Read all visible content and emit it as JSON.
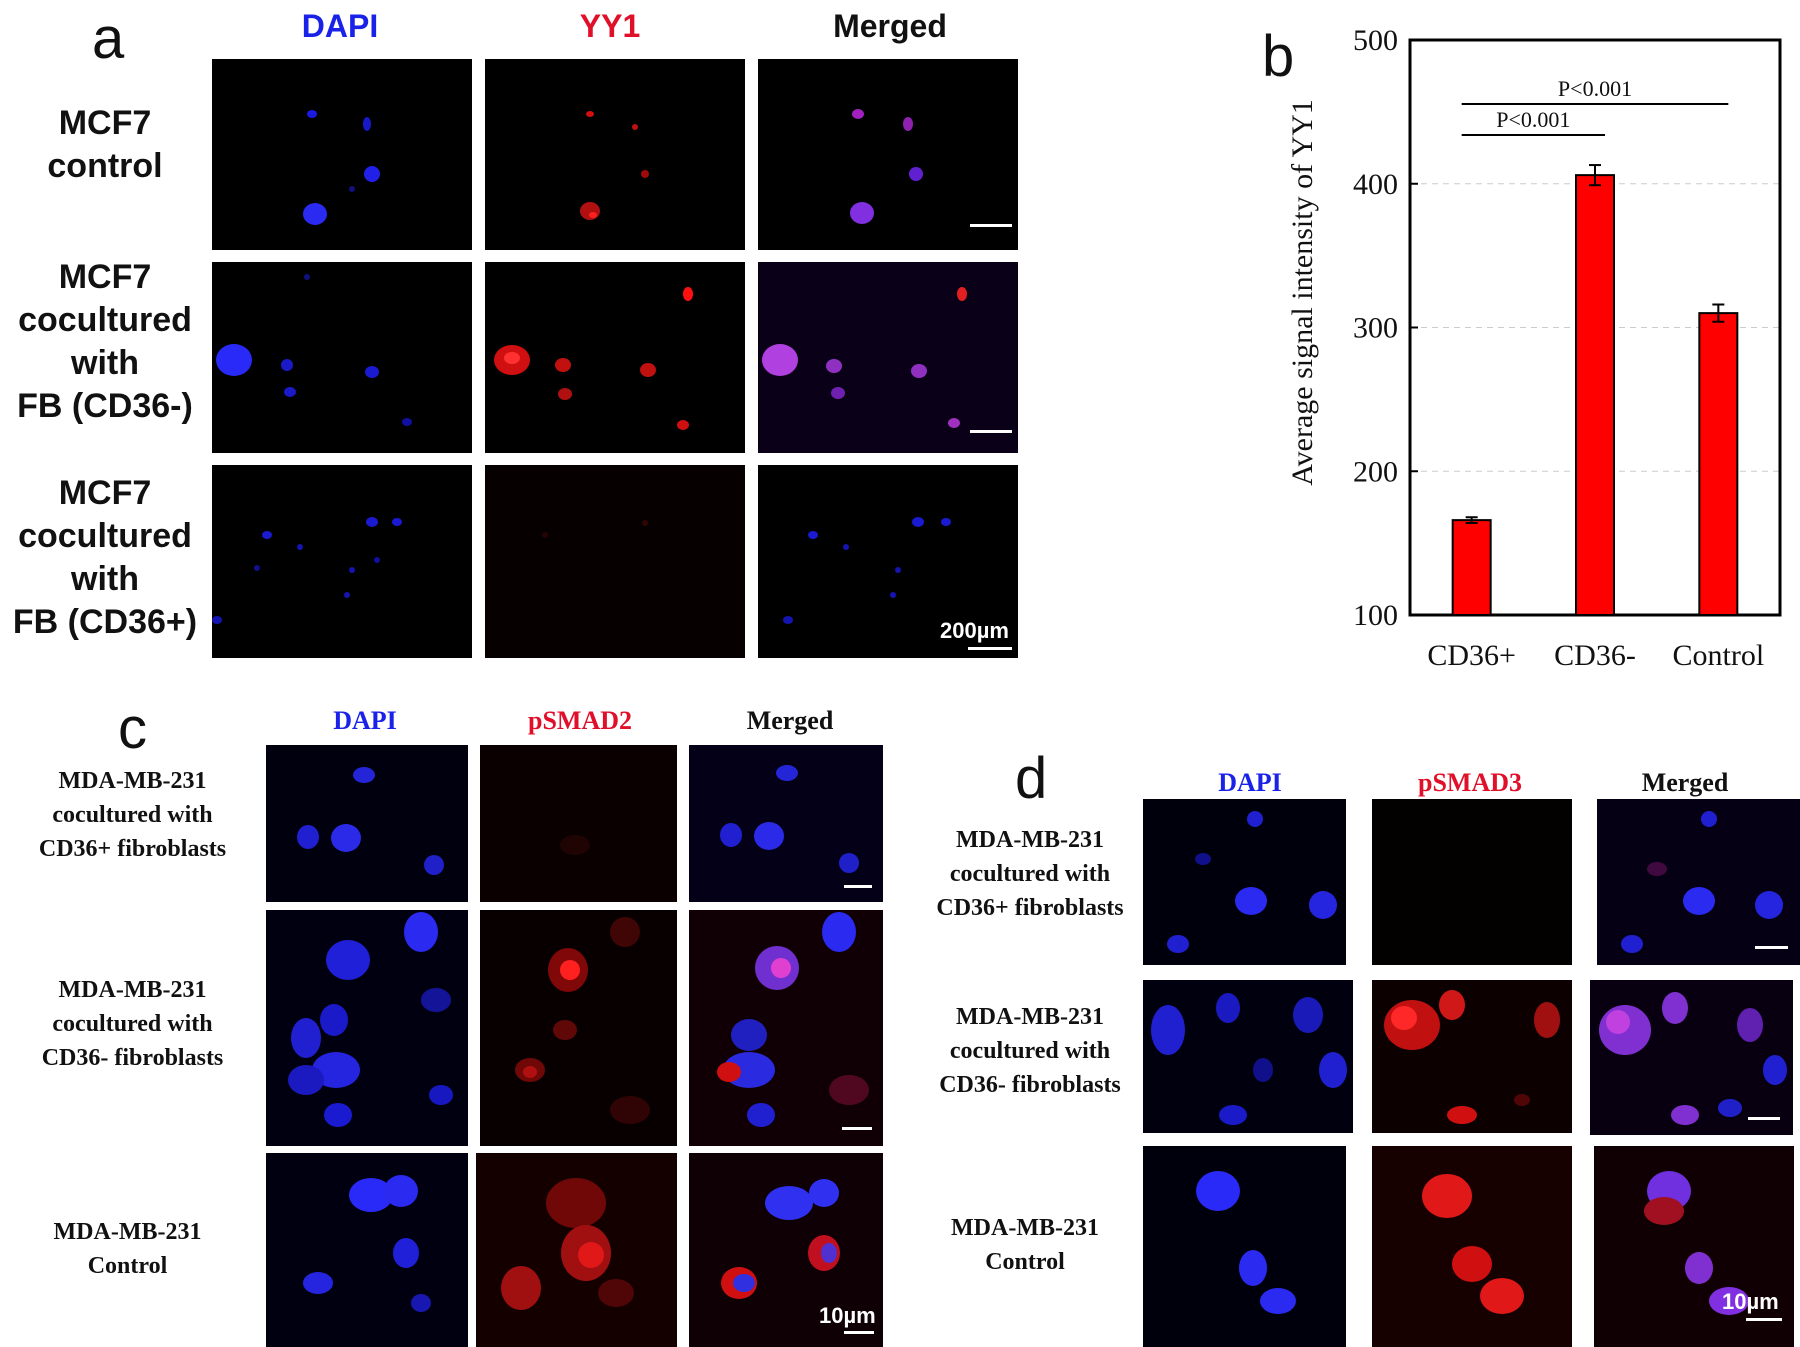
{
  "panel_a": {
    "letter": "a",
    "headers": {
      "dapi": "DAPI",
      "yy1": "YY1",
      "merged": "Merged"
    },
    "rows": [
      {
        "label_lines": [
          "MCF7",
          "control"
        ]
      },
      {
        "label_lines": [
          "MCF7",
          "cocultured",
          "with",
          "FB (CD36-)"
        ]
      },
      {
        "label_lines": [
          "MCF7",
          "cocultured",
          "with",
          "FB (CD36+)"
        ]
      }
    ],
    "scale_label": "200µm"
  },
  "panel_b": {
    "letter": "b",
    "chart_data": {
      "type": "bar",
      "categories": [
        "CD36+",
        "CD36-",
        "Control"
      ],
      "values": [
        166,
        406,
        310
      ],
      "errors": [
        2,
        7,
        6
      ],
      "ylabel": "Average signal intensity of YY1",
      "ylim": [
        100,
        500
      ],
      "yticks": [
        100,
        200,
        300,
        400,
        500
      ],
      "grid": true,
      "bar_color": "#ff0000",
      "significance": [
        {
          "from": "CD36+",
          "to": "CD36-",
          "label": "P<0.001"
        },
        {
          "from": "CD36+",
          "to": "Control",
          "label": "P<0.001"
        }
      ]
    }
  },
  "panel_c": {
    "letter": "c",
    "headers": {
      "dapi": "DAPI",
      "marker": "pSMAD2",
      "merged": "Merged"
    },
    "rows": [
      {
        "label_lines": [
          "MDA-MB-231",
          "cocultured with",
          "CD36+ fibroblasts"
        ]
      },
      {
        "label_lines": [
          "MDA-MB-231",
          "cocultured with",
          "CD36- fibroblasts"
        ]
      },
      {
        "label_lines": [
          "MDA-MB-231",
          "Control"
        ]
      }
    ],
    "scale_label": "10µm"
  },
  "panel_d": {
    "letter": "d",
    "headers": {
      "dapi": "DAPI",
      "marker": "pSMAD3",
      "merged": "Merged"
    },
    "rows": [
      {
        "label_lines": [
          "MDA-MB-231",
          "cocultured with",
          "CD36+ fibroblasts"
        ]
      },
      {
        "label_lines": [
          "MDA-MB-231",
          "cocultured with",
          "CD36- fibroblasts"
        ]
      },
      {
        "label_lines": [
          "MDA-MB-231",
          "Control"
        ]
      }
    ],
    "scale_label": "10µm"
  }
}
